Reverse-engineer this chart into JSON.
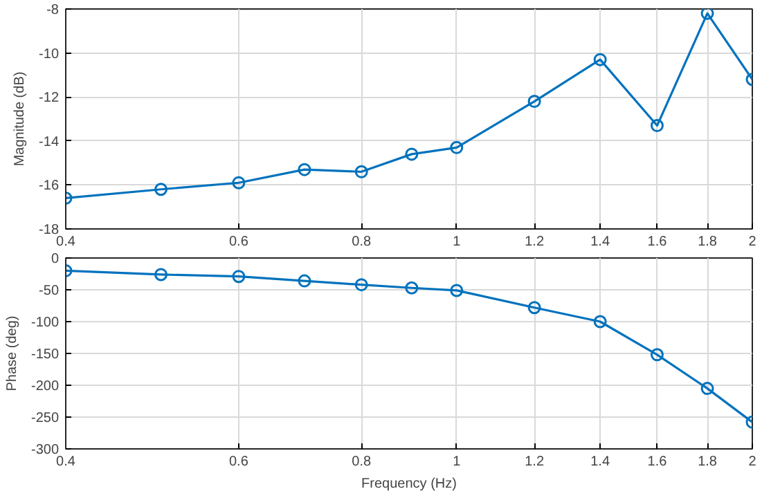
{
  "chart_data": [
    {
      "type": "line",
      "ylabel": "Magnitude (dB)",
      "x": [
        0.4,
        0.5,
        0.6,
        0.7,
        0.8,
        0.9,
        1,
        1.2,
        1.4,
        1.6,
        1.8,
        2
      ],
      "series": [
        {
          "color": "#0072bd",
          "values": [
            -16.6,
            -16.2,
            -15.9,
            -15.3,
            -15.4,
            -14.6,
            -14.3,
            -12.2,
            -10.3,
            -13.3,
            -8.2,
            -11.2
          ]
        }
      ],
      "xlim": [
        0.4,
        2
      ],
      "xticks": [
        0.4,
        0.6,
        0.8,
        1,
        1.2,
        1.4,
        1.6,
        1.8,
        2
      ],
      "ylim": [
        -18,
        -8
      ],
      "yticks": [
        -18,
        -16,
        -14,
        -12,
        -10,
        -8
      ],
      "log": "x",
      "grid": true,
      "marker": "circle",
      "line_style": "solid"
    },
    {
      "type": "line",
      "xlabel": "Frequency (Hz)",
      "ylabel": "Phase (deg)",
      "x": [
        0.4,
        0.5,
        0.6,
        0.7,
        0.8,
        0.9,
        1,
        1.2,
        1.4,
        1.6,
        1.8,
        2
      ],
      "series": [
        {
          "color": "#0072bd",
          "values": [
            -20,
            -26,
            -29,
            -36,
            -42,
            -47,
            -51,
            -78,
            -100,
            -152,
            -205,
            -258
          ]
        }
      ],
      "xlim": [
        0.4,
        2
      ],
      "xticks": [
        0.4,
        0.6,
        0.8,
        1,
        1.2,
        1.4,
        1.6,
        1.8,
        2
      ],
      "ylim": [
        -300,
        0
      ],
      "yticks": [
        -300,
        -250,
        -200,
        -150,
        -100,
        -50,
        0
      ],
      "log": "x",
      "grid": true,
      "marker": "circle",
      "line_style": "solid"
    }
  ]
}
